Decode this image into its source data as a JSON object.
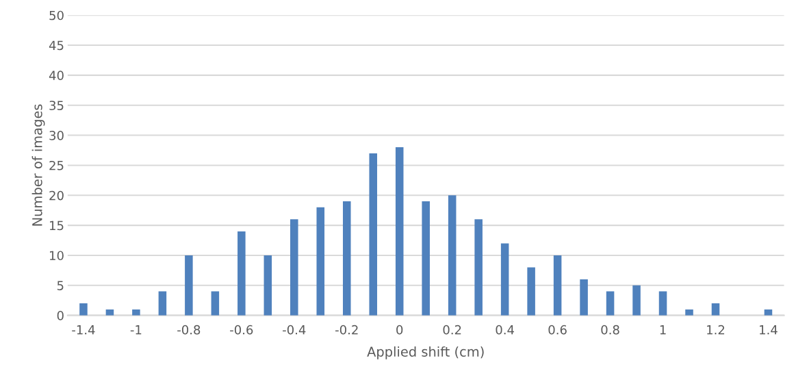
{
  "chart_data": {
    "type": "bar",
    "xlabel": "Applied shift (cm)",
    "ylabel": "Number of images",
    "categories": [
      "-1.4",
      null,
      "-1",
      null,
      "-0.8",
      null,
      "-0.6",
      null,
      "-0.4",
      null,
      "-0.2",
      null,
      "0",
      null,
      "0.2",
      null,
      "0.4",
      null,
      "0.6",
      null,
      "0.8",
      null,
      "1",
      null,
      "1.2",
      null,
      "1.4"
    ],
    "values": [
      2,
      1,
      1,
      4,
      10,
      4,
      14,
      10,
      16,
      18,
      19,
      27,
      28,
      19,
      20,
      16,
      12,
      8,
      10,
      6,
      4,
      5,
      4,
      1,
      2,
      0,
      1
    ],
    "color": "#4f81bd",
    "ylim": [
      0,
      50
    ],
    "yticks": [
      0,
      5,
      10,
      15,
      20,
      25,
      30,
      35,
      40,
      45,
      50
    ],
    "grid": "y",
    "legend": false
  }
}
